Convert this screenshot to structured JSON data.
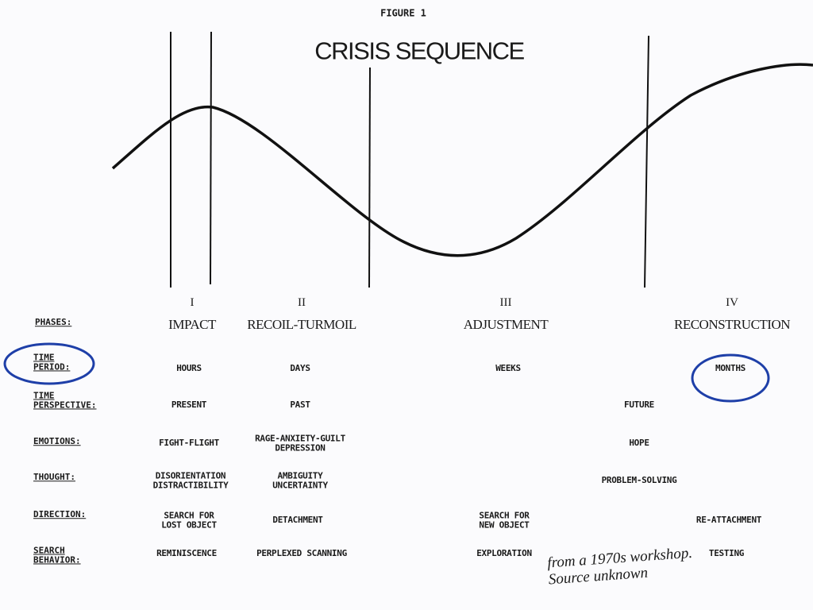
{
  "header": {
    "figure": "FIGURE 1",
    "title": "CRISIS SEQUENCE"
  },
  "phases": {
    "label": "PHASES:",
    "items": [
      {
        "numeral": "I",
        "name": "IMPACT"
      },
      {
        "numeral": "II",
        "name": "RECOIL-TURMOIL"
      },
      {
        "numeral": "III",
        "name": "ADJUSTMENT"
      },
      {
        "numeral": "IV",
        "name": "RECONSTRUCTION"
      }
    ]
  },
  "rows": [
    {
      "label": "TIME\nPERIOD:",
      "cells": [
        "HOURS",
        "DAYS",
        "WEEKS",
        "MONTHS"
      ]
    },
    {
      "label": "TIME\nPERSPECTIVE:",
      "cells": [
        "PRESENT",
        "PAST",
        null,
        "FUTURE"
      ]
    },
    {
      "label": "EMOTIONS:",
      "cells": [
        "FIGHT-FLIGHT",
        "RAGE-ANXIETY-GUILT\nDEPRESSION",
        null,
        "HOPE"
      ]
    },
    {
      "label": "THOUGHT:",
      "cells": [
        "DISORIENTATION\nDISTRACTIBILITY",
        "AMBIGUITY\nUNCERTAINTY",
        null,
        "PROBLEM-SOLVING"
      ]
    },
    {
      "label": "DIRECTION:",
      "cells": [
        "SEARCH FOR\nLOST OBJECT",
        "DETACHMENT",
        "SEARCH FOR\nNEW OBJECT",
        "RE-ATTACHMENT"
      ]
    },
    {
      "label": "SEARCH\nBEHAVIOR:",
      "cells": [
        "REMINISCENCE",
        "PERPLEXED SCANNING",
        "EXPLORATION",
        "TESTING"
      ]
    }
  ],
  "note": "from a 1970s workshop.\nSource unknown"
}
